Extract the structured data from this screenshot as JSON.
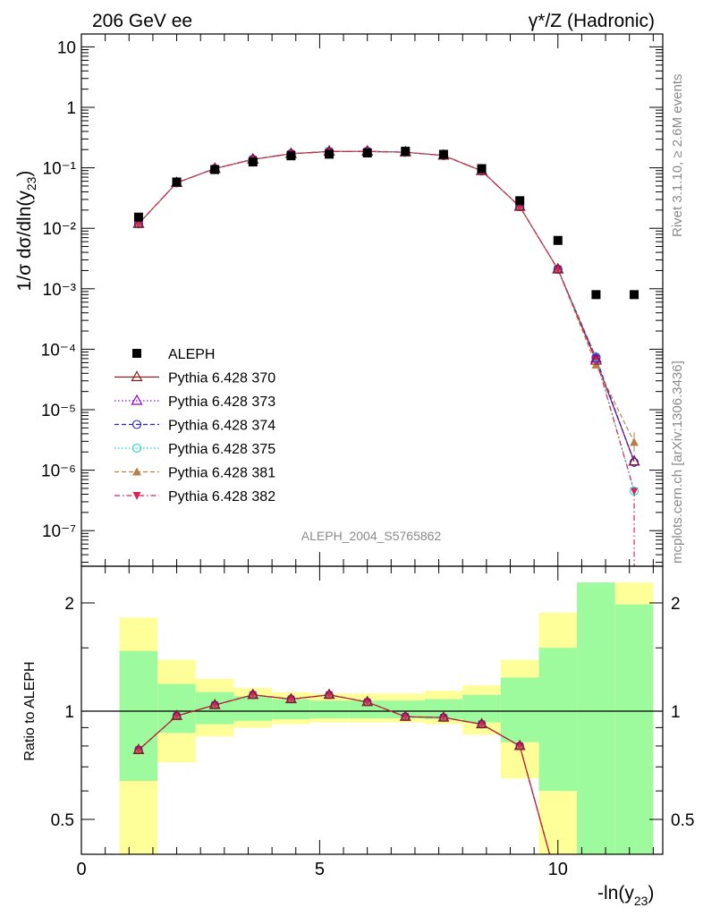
{
  "header": {
    "left": "206 GeV ee",
    "right": "γ*/Z (Hadronic)"
  },
  "side_text": {
    "rivet": "Rivet 3.1.10, ≥ 2.6M events",
    "mcplots": "mcplots.cern.ch [arXiv:1306.3436]"
  },
  "analysis_label": "ALEPH_2004_S5765862",
  "colors": {
    "ALEPH": "#000000",
    "370": "#8b1a1a",
    "373": "#9400d3",
    "374": "#2a1fd6",
    "375": "#20d0c8",
    "381": "#b5814a",
    "382": "#e0205a",
    "band_inner": "#9dfa9d",
    "band_outer": "#ffff99"
  },
  "chart_data": [
    {
      "type": "scatter",
      "panel": "main",
      "ylabel": "1/σ dσ/dln(y23)",
      "yscale": "log",
      "ylim": [
        3e-08,
        20
      ],
      "xlim": [
        0,
        12.2
      ],
      "yticks": [
        "10⁻⁷",
        "10⁻⁶",
        "10⁻⁵",
        "10⁻⁴",
        "10⁻³",
        "10⁻²",
        "10⁻¹",
        "1",
        "10"
      ],
      "legend_position": "left-middle",
      "x": [
        1.2,
        2.0,
        2.8,
        3.6,
        4.4,
        5.2,
        6.0,
        6.8,
        7.6,
        8.4,
        9.2,
        10.0,
        10.8,
        11.6
      ],
      "series": [
        {
          "name": "ALEPH",
          "marker": "square",
          "values": [
            0.0153,
            0.0583,
            0.0935,
            0.125,
            0.158,
            0.168,
            0.176,
            0.188,
            0.167,
            0.097,
            0.0286,
            0.0063,
            0.0008,
            0.0008
          ]
        },
        {
          "name": "Pythia 6.428 370",
          "marker": "triangle-open",
          "line": "solid",
          "values": [
            0.0119,
            0.0565,
            0.097,
            0.138,
            0.171,
            0.186,
            0.187,
            0.181,
            0.16,
            0.089,
            0.0228,
            0.0021,
            6.5e-05,
            1.4e-06
          ]
        },
        {
          "name": "Pythia 6.428 373",
          "marker": "triangle-open",
          "line": "dotted",
          "values": [
            0.0119,
            0.0565,
            0.097,
            0.138,
            0.171,
            0.186,
            0.187,
            0.181,
            0.16,
            0.089,
            0.0228,
            0.0021,
            7e-05,
            1.4e-06
          ]
        },
        {
          "name": "Pythia 6.428 374",
          "marker": "circle-open",
          "line": "dashed",
          "values": [
            0.0119,
            0.0565,
            0.097,
            0.138,
            0.171,
            0.186,
            0.187,
            0.181,
            0.16,
            0.089,
            0.0228,
            0.0021,
            7.2e-05,
            1.35e-06
          ]
        },
        {
          "name": "Pythia 6.428 375",
          "marker": "circle-open",
          "line": "dotted",
          "values": [
            0.0119,
            0.0565,
            0.097,
            0.138,
            0.171,
            0.186,
            0.187,
            0.181,
            0.16,
            0.089,
            0.0228,
            0.0021,
            7.5e-05,
            4.5e-07
          ]
        },
        {
          "name": "Pythia 6.428 381",
          "marker": "triangle-filled",
          "line": "dashed",
          "values": [
            0.0119,
            0.0565,
            0.097,
            0.138,
            0.171,
            0.186,
            0.187,
            0.181,
            0.16,
            0.089,
            0.0228,
            0.0021,
            5.5e-05,
            2.9e-06
          ]
        },
        {
          "name": "Pythia 6.428 382",
          "marker": "triangle-down-filled",
          "line": "dashdot",
          "values": [
            0.0119,
            0.0565,
            0.097,
            0.138,
            0.171,
            0.186,
            0.187,
            0.181,
            0.16,
            0.089,
            0.0228,
            0.0021,
            7e-05,
            4.5e-07
          ]
        }
      ]
    },
    {
      "type": "line",
      "panel": "ratio",
      "ylabel": "Ratio to ALEPH",
      "xlabel": "-ln(y23)",
      "ylim": [
        0.33,
        2.28
      ],
      "xlim": [
        0,
        12.2
      ],
      "xticks": [
        "0",
        "5",
        "10"
      ],
      "yticks": [
        "0.5",
        "1",
        "2"
      ],
      "bins": [
        [
          0.8,
          1.6
        ],
        [
          1.6,
          2.4
        ],
        [
          2.4,
          3.2
        ],
        [
          3.2,
          4.0
        ],
        [
          4.0,
          4.8
        ],
        [
          4.8,
          5.6
        ],
        [
          5.6,
          6.4
        ],
        [
          6.4,
          7.2
        ],
        [
          7.2,
          8.0
        ],
        [
          8.0,
          8.8
        ],
        [
          8.8,
          9.6
        ],
        [
          9.6,
          10.4
        ],
        [
          10.4,
          11.2
        ],
        [
          11.2,
          12.0
        ]
      ],
      "band_inner": [
        [
          0.64,
          1.47
        ],
        [
          0.87,
          1.19
        ],
        [
          0.92,
          1.13
        ],
        [
          0.94,
          1.1
        ],
        [
          0.95,
          1.08
        ],
        [
          0.955,
          1.07
        ],
        [
          0.955,
          1.07
        ],
        [
          0.955,
          1.07
        ],
        [
          0.95,
          1.08
        ],
        [
          0.93,
          1.11
        ],
        [
          0.82,
          1.24
        ],
        [
          0.6,
          1.5
        ],
        [
          0.33,
          2.28
        ],
        [
          0.33,
          1.98
        ]
      ],
      "band_outer": [
        [
          0.33,
          1.82
        ],
        [
          0.72,
          1.39
        ],
        [
          0.85,
          1.23
        ],
        [
          0.9,
          1.16
        ],
        [
          0.92,
          1.13
        ],
        [
          0.93,
          1.12
        ],
        [
          0.93,
          1.12
        ],
        [
          0.93,
          1.12
        ],
        [
          0.92,
          1.14
        ],
        [
          0.86,
          1.18
        ],
        [
          0.65,
          1.39
        ],
        [
          0.33,
          1.88
        ],
        [
          0.33,
          2.28
        ],
        [
          0.33,
          2.28
        ]
      ],
      "x": [
        1.2,
        2.0,
        2.8,
        3.6,
        4.4,
        5.2,
        6.0,
        6.8,
        7.6,
        8.4,
        9.2,
        10.0
      ],
      "series": [
        {
          "name": "Pythia 6.428 370",
          "values": [
            0.78,
            0.97,
            1.04,
            1.11,
            1.08,
            1.11,
            1.06,
            0.965,
            0.96,
            0.92,
            0.8,
            0.33
          ]
        }
      ]
    }
  ]
}
